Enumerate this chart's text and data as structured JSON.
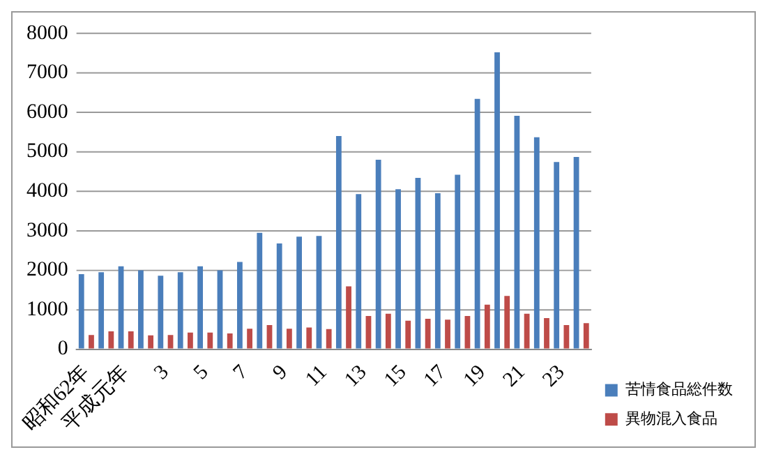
{
  "chart_data": {
    "type": "bar",
    "categories": [
      "昭和62年",
      null,
      "平成元年",
      null,
      "3",
      null,
      "5",
      null,
      "7",
      null,
      "9",
      null,
      "11",
      null,
      "13",
      null,
      "15",
      null,
      "17",
      null,
      "19",
      null,
      "21",
      null,
      "23",
      null
    ],
    "series": [
      {
        "name": "苦情食品総件数",
        "color": "#4a7ebb",
        "values": [
          1900,
          1950,
          2100,
          2000,
          1860,
          1950,
          2100,
          2000,
          2210,
          2950,
          2680,
          2850,
          2870,
          5400,
          3930,
          4800,
          4050,
          4340,
          3950,
          4420,
          6340,
          7520,
          5910,
          5370,
          4740,
          4870
        ]
      },
      {
        "name": "異物混入食品",
        "color": "#be4b48",
        "values": [
          360,
          450,
          450,
          350,
          360,
          420,
          420,
          400,
          520,
          610,
          520,
          550,
          510,
          1590,
          840,
          900,
          720,
          770,
          750,
          840,
          1130,
          1350,
          900,
          790,
          610,
          660
        ]
      }
    ],
    "ylim": [
      0,
      8000
    ],
    "yticks": [
      0,
      1000,
      2000,
      3000,
      4000,
      5000,
      6000,
      7000,
      8000
    ],
    "grid": "y",
    "legend": "bottom right"
  }
}
